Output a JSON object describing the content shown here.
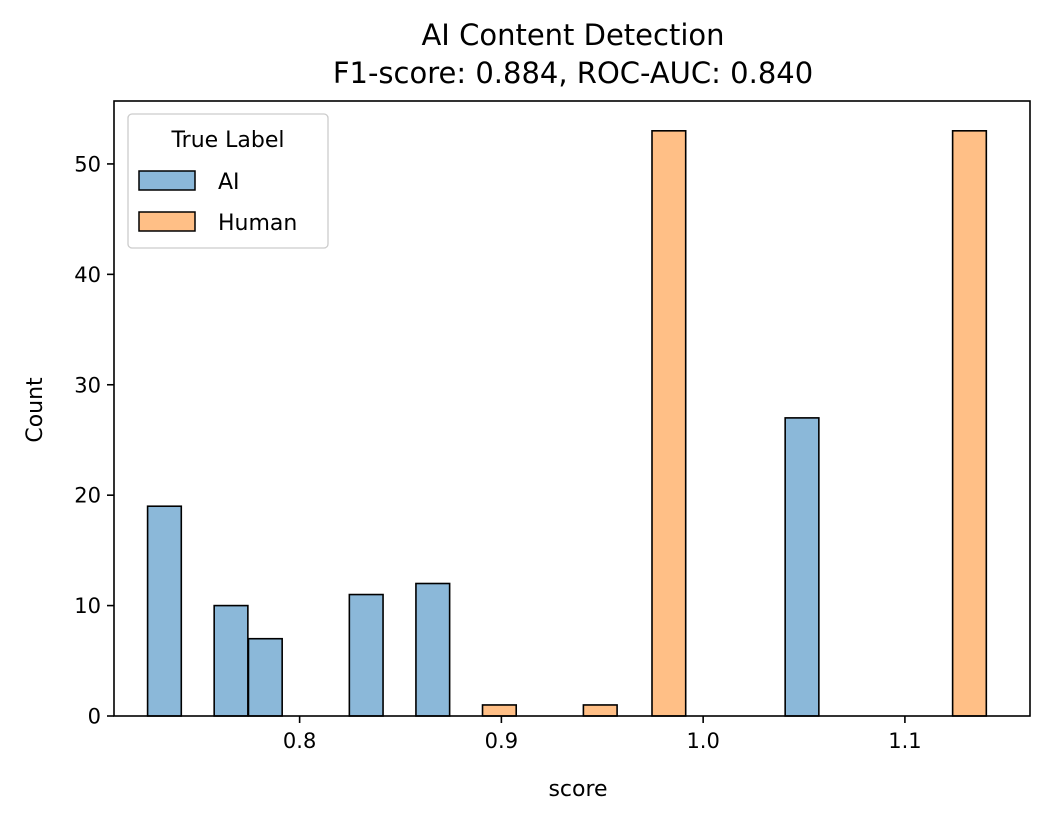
{
  "chart_data": {
    "type": "bar",
    "title_lines": [
      "AI Content Detection",
      "F1-score: 0.884,  ROC-AUC: 0.840"
    ],
    "xlabel": "score",
    "ylabel": "Count",
    "xlim": [
      0.708,
      1.162
    ],
    "ylim": [
      0,
      55.7
    ],
    "xticks": [
      0.8,
      0.9,
      1.0,
      1.1
    ],
    "xtick_labels": [
      "0.8",
      "0.9",
      "1.0",
      "1.1"
    ],
    "yticks": [
      0,
      10,
      20,
      30,
      40,
      50
    ],
    "ytick_labels": [
      "0",
      "10",
      "20",
      "30",
      "40",
      "50"
    ],
    "bar_width": 0.0167,
    "legend": {
      "title": "True Label",
      "position": "top-left"
    },
    "series": [
      {
        "name": "AI",
        "color": "#8bb8d9",
        "bars": [
          {
            "x": 0.733,
            "value": 19
          },
          {
            "x": 0.766,
            "value": 10
          },
          {
            "x": 0.783,
            "value": 7
          },
          {
            "x": 0.833,
            "value": 11
          },
          {
            "x": 0.866,
            "value": 12
          },
          {
            "x": 1.049,
            "value": 27
          }
        ]
      },
      {
        "name": "Human",
        "color": "#ffbf86",
        "bars": [
          {
            "x": 0.899,
            "value": 1
          },
          {
            "x": 0.949,
            "value": 1
          },
          {
            "x": 0.983,
            "value": 53
          },
          {
            "x": 1.132,
            "value": 53
          }
        ]
      }
    ]
  }
}
